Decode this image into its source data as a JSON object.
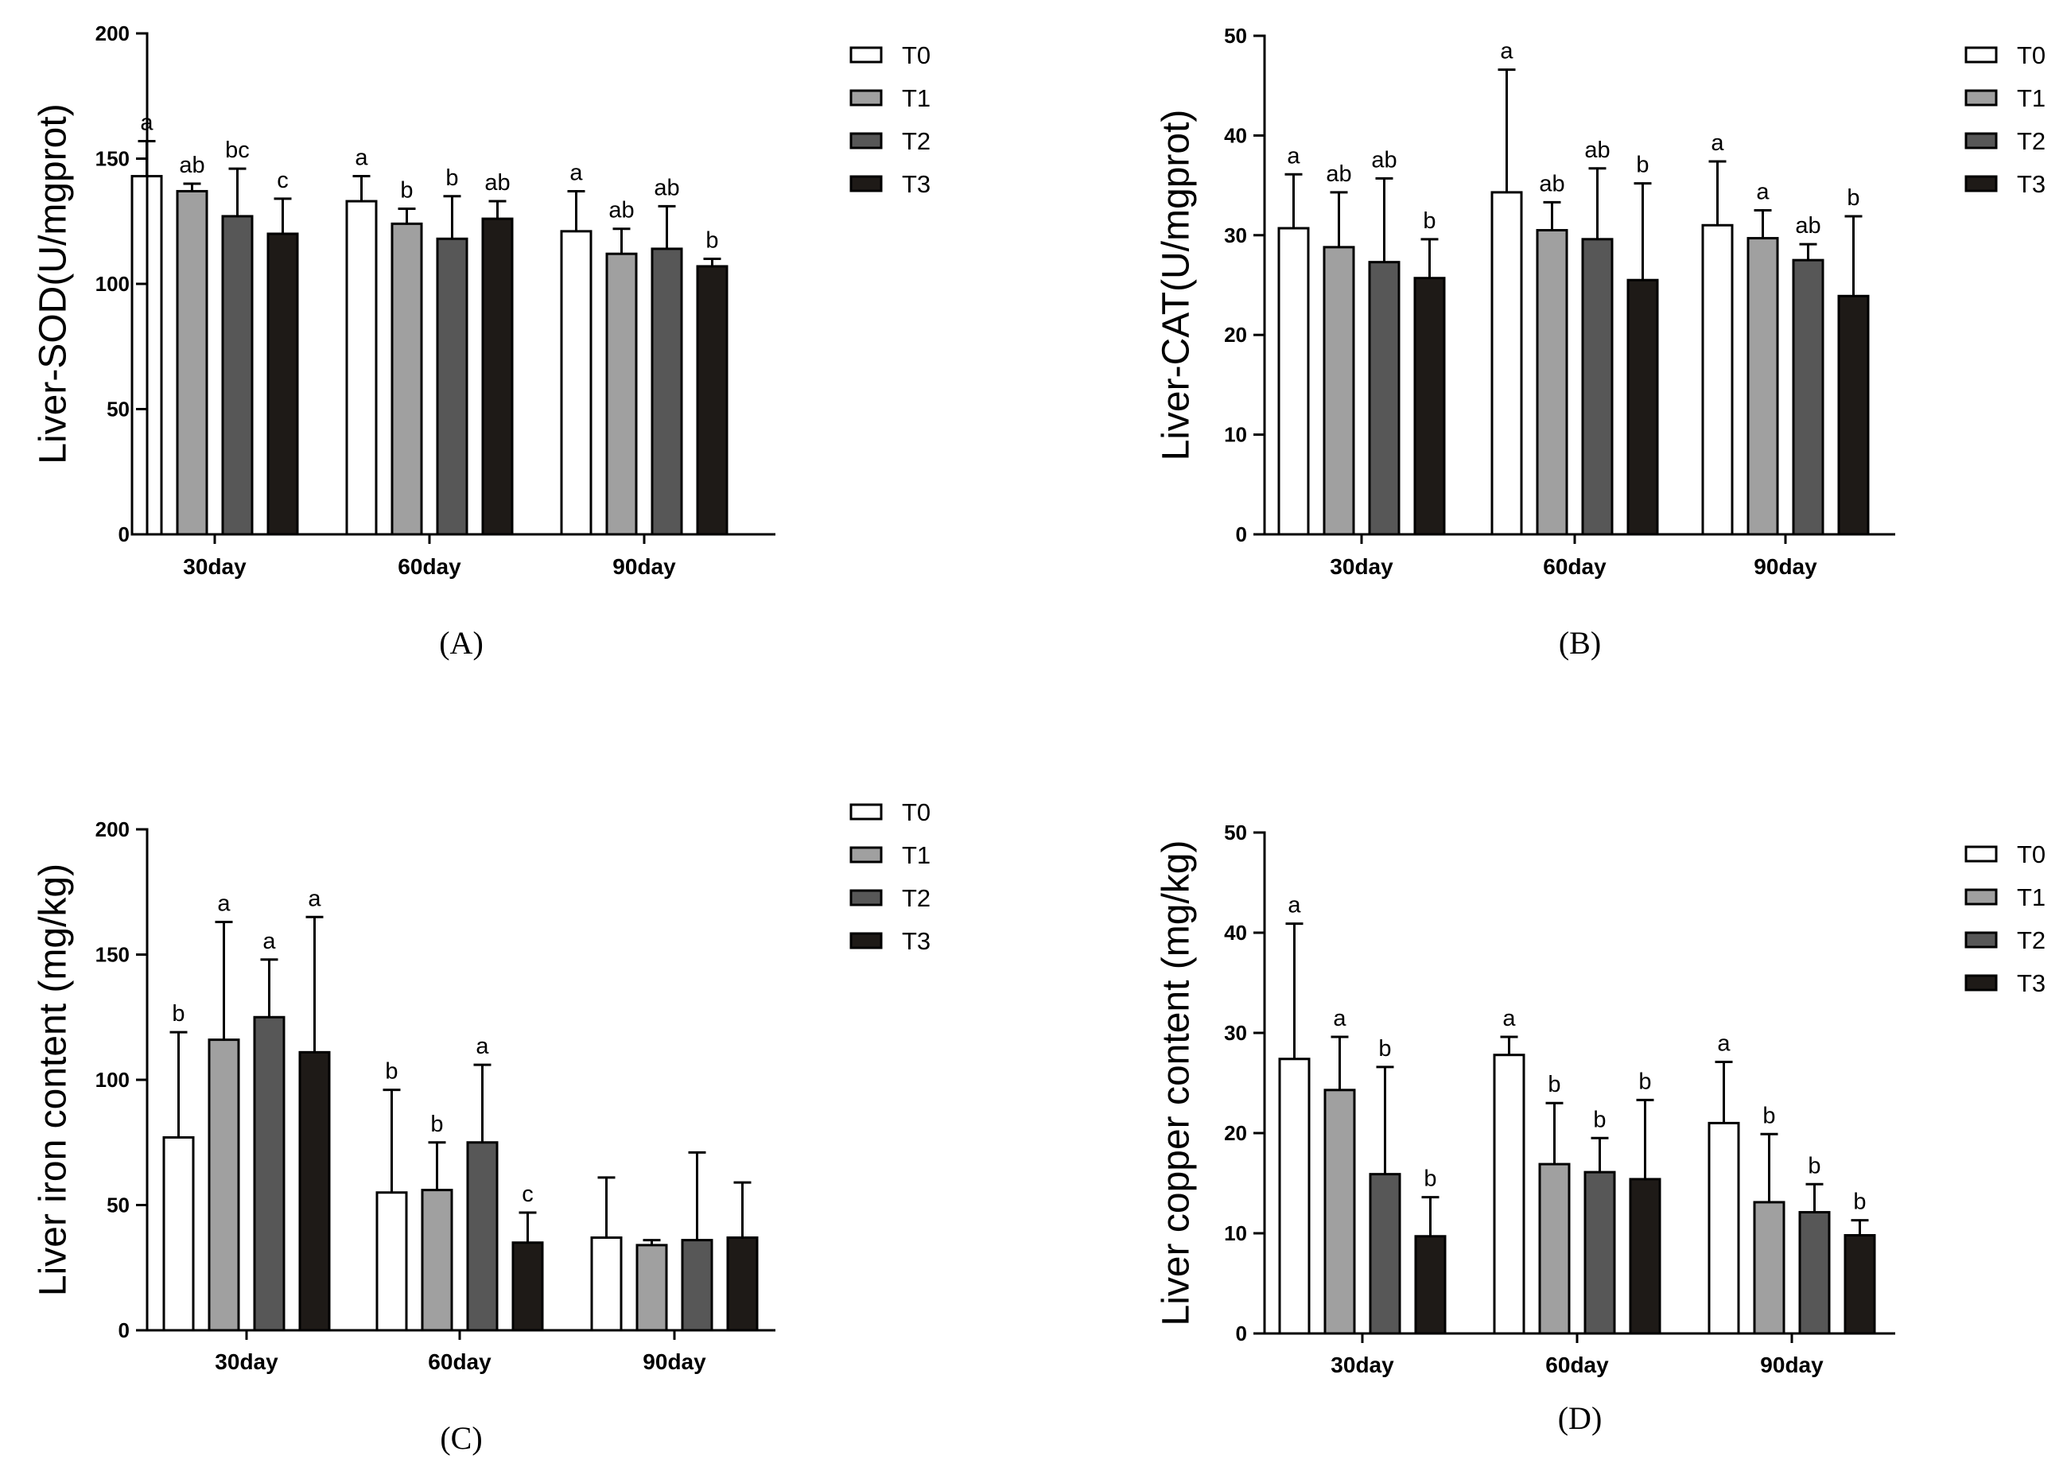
{
  "chart_data": [
    {
      "panel": "(A)",
      "type": "bar",
      "ylabel": "Liver-SOD(U/mgprot)",
      "ylim": [
        0,
        200
      ],
      "yticks": [
        0,
        50,
        100,
        150,
        200
      ],
      "categories": [
        "30day",
        "60day",
        "90day"
      ],
      "series": [
        {
          "name": "T0",
          "color": "#ffffff",
          "values": [
            143,
            133,
            121
          ],
          "errors": [
            14,
            10,
            16
          ],
          "letters": [
            "a",
            "a",
            "a"
          ]
        },
        {
          "name": "T1",
          "color": "#a0a0a0",
          "values": [
            137,
            124,
            112
          ],
          "errors": [
            3,
            6,
            10
          ],
          "letters": [
            "ab",
            "b",
            "ab"
          ]
        },
        {
          "name": "T2",
          "color": "#575757",
          "values": [
            127,
            118,
            114
          ],
          "errors": [
            19,
            17,
            17
          ],
          "letters": [
            "bc",
            "b",
            "ab"
          ]
        },
        {
          "name": "T3",
          "color": "#1e1a17",
          "values": [
            120,
            126,
            107
          ],
          "errors": [
            14,
            7,
            3
          ],
          "letters": [
            "c",
            "ab",
            "b"
          ]
        }
      ]
    },
    {
      "panel": "(B)",
      "type": "bar",
      "ylabel": "Liver-CAT(U/mgprot)",
      "ylim": [
        0,
        50
      ],
      "yticks": [
        0,
        10,
        20,
        30,
        40,
        50
      ],
      "categories": [
        "30day",
        "60day",
        "90day"
      ],
      "series": [
        {
          "name": "T0",
          "color": "#ffffff",
          "values": [
            30.7,
            34.3,
            31.0
          ],
          "errors": [
            5.4,
            12.3,
            6.4
          ],
          "letters": [
            "a",
            "a",
            "a"
          ]
        },
        {
          "name": "T1",
          "color": "#a0a0a0",
          "values": [
            28.8,
            30.5,
            29.7
          ],
          "errors": [
            5.5,
            2.8,
            2.8
          ],
          "letters": [
            "ab",
            "ab",
            "a"
          ]
        },
        {
          "name": "T2",
          "color": "#575757",
          "values": [
            27.3,
            29.6,
            27.5
          ],
          "errors": [
            8.4,
            7.1,
            1.6
          ],
          "letters": [
            "ab",
            "ab",
            "ab"
          ]
        },
        {
          "name": "T3",
          "color": "#1e1a17",
          "values": [
            25.7,
            25.5,
            23.9
          ],
          "errors": [
            3.9,
            9.7,
            8.0
          ],
          "letters": [
            "b",
            "b",
            "b"
          ]
        }
      ]
    },
    {
      "panel": "(C)",
      "type": "bar",
      "ylabel": "Liver iron content (mg/kg)",
      "ylim": [
        0,
        200
      ],
      "yticks": [
        0,
        50,
        100,
        150,
        200
      ],
      "categories": [
        "30day",
        "60day",
        "90day"
      ],
      "series": [
        {
          "name": "T0",
          "color": "#ffffff",
          "values": [
            77,
            55,
            37
          ],
          "errors": [
            42,
            41,
            24
          ],
          "letters": [
            "b",
            "b",
            ""
          ]
        },
        {
          "name": "T1",
          "color": "#a0a0a0",
          "values": [
            116,
            56,
            34
          ],
          "errors": [
            47,
            19,
            2
          ],
          "letters": [
            "a",
            "b",
            ""
          ]
        },
        {
          "name": "T2",
          "color": "#575757",
          "values": [
            125,
            75,
            36
          ],
          "errors": [
            23,
            31,
            35
          ],
          "letters": [
            "a",
            "a",
            ""
          ]
        },
        {
          "name": "T3",
          "color": "#1e1a17",
          "values": [
            111,
            35,
            37
          ],
          "errors": [
            54,
            12,
            22
          ],
          "letters": [
            "a",
            "c",
            ""
          ]
        }
      ]
    },
    {
      "panel": "(D)",
      "type": "bar",
      "ylabel": "Liver copper content (mg/kg)",
      "ylim": [
        0,
        50
      ],
      "yticks": [
        0,
        10,
        20,
        30,
        40,
        50
      ],
      "categories": [
        "30day",
        "60day",
        "90day"
      ],
      "series": [
        {
          "name": "T0",
          "color": "#ffffff",
          "values": [
            27.4,
            27.8,
            21.0
          ],
          "errors": [
            13.5,
            1.8,
            6.1
          ],
          "letters": [
            "a",
            "a",
            "a"
          ]
        },
        {
          "name": "T1",
          "color": "#a0a0a0",
          "values": [
            24.3,
            16.9,
            13.1
          ],
          "errors": [
            5.3,
            6.1,
            6.8
          ],
          "letters": [
            "a",
            "b",
            "b"
          ]
        },
        {
          "name": "T2",
          "color": "#575757",
          "values": [
            15.9,
            16.1,
            12.1
          ],
          "errors": [
            10.7,
            3.4,
            2.8
          ],
          "letters": [
            "b",
            "b",
            "b"
          ]
        },
        {
          "name": "T3",
          "color": "#1e1a17",
          "values": [
            9.7,
            15.4,
            9.8
          ],
          "errors": [
            3.9,
            7.9,
            1.5
          ],
          "letters": [
            "b",
            "b",
            "b"
          ]
        }
      ]
    }
  ]
}
